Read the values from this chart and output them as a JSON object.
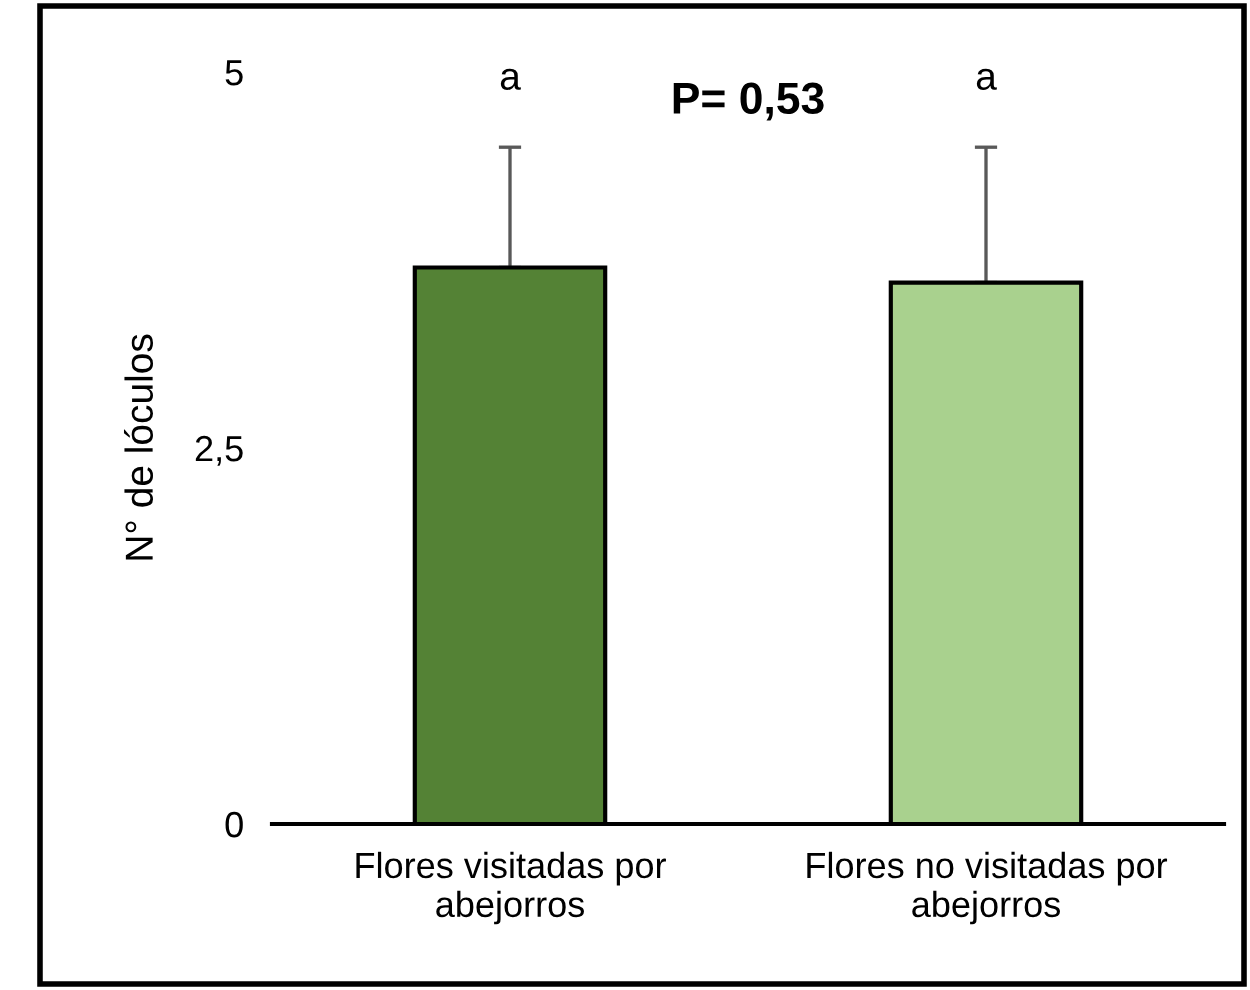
{
  "chart_data": {
    "type": "bar",
    "ylabel": "N° de lóculos",
    "categories": [
      "Flores visitadas por\nabejorros",
      "Flores no visitadas por\nabejorros"
    ],
    "values": [
      3.7,
      3.6
    ],
    "colors": [
      "#548235",
      "#a9d18e"
    ],
    "errors": [
      [
        3.7,
        4.5
      ],
      [
        3.6,
        4.5
      ]
    ],
    "ylim": [
      0,
      5
    ],
    "yticks": [
      0,
      {
        "value": 2.5,
        "label": "2,5"
      },
      5
    ],
    "grid": false,
    "annotations": [
      "a",
      "a",
      "P= 0,53"
    ]
  }
}
